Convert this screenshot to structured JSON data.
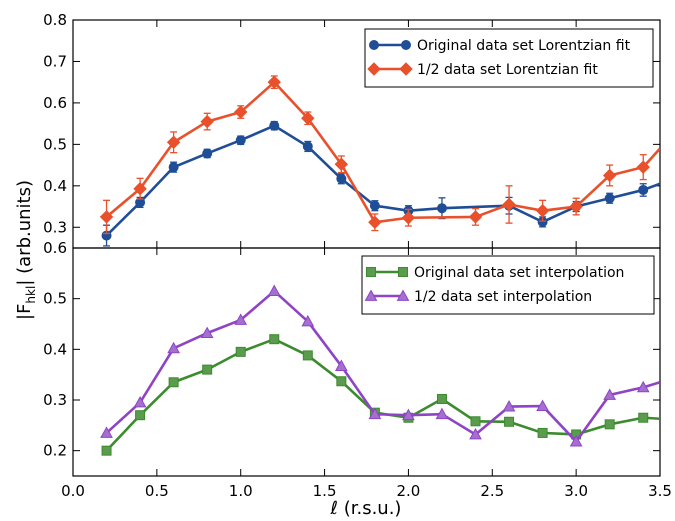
{
  "chart_data": [
    {
      "type": "line",
      "panel": "top",
      "xlim": [
        0.0,
        3.5
      ],
      "ylim": [
        0.25,
        0.8
      ],
      "xlabel": "ℓ (r.s.u.)",
      "ylabel": "|F_hkl| (arb.units)",
      "ylabel_main": "|F",
      "ylabel_sub": "hkl",
      "ylabel_rest": "| (arb.units)",
      "yticks": [
        "0.8",
        "0.7",
        "0.6",
        "0.5",
        "0.4",
        "0.3"
      ],
      "yticks_values": [
        0.8,
        0.7,
        0.6,
        0.5,
        0.4,
        0.3
      ],
      "legend_position": "top-right",
      "grid": false,
      "series": [
        {
          "name": "Original data set Lorentzian fit",
          "color": "#1f4e96",
          "marker": "circle",
          "x": [
            0.2,
            0.4,
            0.6,
            0.8,
            1.0,
            1.2,
            1.4,
            1.6,
            1.8,
            2.0,
            2.2,
            2.6,
            2.8,
            3.0,
            3.2,
            3.4,
            3.5
          ],
          "y": [
            0.28,
            0.36,
            0.445,
            0.478,
            0.51,
            0.545,
            0.495,
            0.417,
            0.352,
            0.34,
            0.346,
            0.352,
            0.313,
            0.35,
            0.37,
            0.39,
            0.405
          ],
          "err": [
            0.025,
            0.012,
            0.012,
            0.01,
            0.01,
            0.01,
            0.012,
            0.012,
            0.012,
            0.012,
            0.025,
            0.02,
            0.012,
            0.012,
            0.012,
            0.015,
            0
          ]
        },
        {
          "name": "1/2 data set Lorentzian fit",
          "color": "#e8512c",
          "marker": "diamond",
          "x": [
            0.2,
            0.4,
            0.6,
            0.8,
            1.0,
            1.2,
            1.4,
            1.6,
            1.8,
            2.0,
            2.4,
            2.6,
            2.8,
            3.0,
            3.2,
            3.4,
            3.5
          ],
          "y": [
            0.325,
            0.393,
            0.505,
            0.555,
            0.578,
            0.65,
            0.563,
            0.452,
            0.312,
            0.323,
            0.325,
            0.355,
            0.34,
            0.35,
            0.425,
            0.445,
            0.49
          ],
          "err": [
            0.04,
            0.025,
            0.025,
            0.02,
            0.015,
            0.015,
            0.015,
            0.02,
            0.02,
            0.02,
            0.02,
            0.045,
            0.025,
            0.02,
            0.025,
            0.03,
            0
          ]
        }
      ]
    },
    {
      "type": "line",
      "panel": "bottom",
      "xlim": [
        0.0,
        3.5
      ],
      "ylim": [
        0.15,
        0.6
      ],
      "xticks": [
        "0.0",
        "0.5",
        "1.0",
        "1.5",
        "2.0",
        "2.5",
        "3.0",
        "3.5"
      ],
      "xticks_values": [
        0.0,
        0.5,
        1.0,
        1.5,
        2.0,
        2.5,
        3.0,
        3.5
      ],
      "yticks": [
        "0.6",
        "0.5",
        "0.4",
        "0.3",
        "0.2"
      ],
      "yticks_values": [
        0.6,
        0.5,
        0.4,
        0.3,
        0.2
      ],
      "legend_position": "top-right",
      "grid": false,
      "series": [
        {
          "name": "Original data set interpolation",
          "color": "#3c8b2e",
          "fill": "#5a9b4e",
          "marker": "square",
          "x": [
            0.2,
            0.4,
            0.6,
            0.8,
            1.0,
            1.2,
            1.4,
            1.6,
            1.8,
            2.0,
            2.2,
            2.4,
            2.6,
            2.8,
            3.0,
            3.2,
            3.4,
            3.5
          ],
          "y": [
            0.2,
            0.27,
            0.335,
            0.36,
            0.395,
            0.42,
            0.388,
            0.337,
            0.275,
            0.265,
            0.302,
            0.258,
            0.257,
            0.235,
            0.232,
            0.252,
            0.265,
            0.263
          ]
        },
        {
          "name": "1/2 data set interpolation",
          "color": "#8e44c4",
          "fill": "#a56fd0",
          "marker": "triangle",
          "x": [
            0.2,
            0.4,
            0.6,
            0.8,
            1.0,
            1.2,
            1.4,
            1.6,
            1.8,
            2.0,
            2.2,
            2.4,
            2.6,
            2.8,
            3.0,
            3.2,
            3.4,
            3.5
          ],
          "y": [
            0.235,
            0.295,
            0.402,
            0.432,
            0.458,
            0.515,
            0.455,
            0.367,
            0.272,
            0.27,
            0.272,
            0.232,
            0.287,
            0.288,
            0.218,
            0.31,
            0.325,
            0.335
          ]
        }
      ]
    }
  ]
}
